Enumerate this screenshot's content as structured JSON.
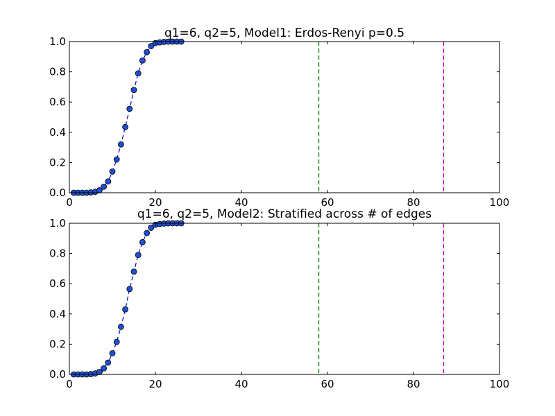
{
  "chart_data": [
    {
      "type": "line",
      "title": "q1=6, q2=5, Model1: Erdos-Renyi p=0.5",
      "xlabel": "",
      "ylabel": "",
      "xlim": [
        0,
        100
      ],
      "ylim": [
        0,
        1
      ],
      "xticks": [
        "0",
        "20",
        "40",
        "60",
        "80",
        "100"
      ],
      "yticks": [
        "0.0",
        "0.2",
        "0.4",
        "0.6",
        "0.8",
        "1.0"
      ],
      "grid": false,
      "series": [
        {
          "color": "#0000cc",
          "marker_fill": "#1f4fcf",
          "line_style": "dashed",
          "x": [
            1,
            2,
            3,
            4,
            5,
            6,
            7,
            8,
            9,
            10,
            11,
            12,
            13,
            14,
            15,
            16,
            17,
            18,
            19,
            20,
            21,
            22,
            23,
            24,
            25,
            26
          ],
          "y": [
            0.0,
            0.0,
            0.0,
            0.0,
            0.002,
            0.006,
            0.016,
            0.04,
            0.075,
            0.14,
            0.22,
            0.32,
            0.435,
            0.555,
            0.68,
            0.79,
            0.875,
            0.93,
            0.97,
            0.99,
            0.995,
            0.998,
            1.0,
            1.0,
            1.0,
            1.0
          ]
        }
      ],
      "vlines": [
        {
          "x": 58,
          "color": "#007f00",
          "style": "dashed"
        },
        {
          "x": 87,
          "color": "#bf00bf",
          "style": "dashed"
        }
      ]
    },
    {
      "type": "line",
      "title": "q1=6, q2=5, Model2: Stratified across # of edges",
      "xlabel": "",
      "ylabel": "",
      "xlim": [
        0,
        100
      ],
      "ylim": [
        0,
        1
      ],
      "xticks": [
        "0",
        "20",
        "40",
        "60",
        "80",
        "100"
      ],
      "yticks": [
        "0.0",
        "0.2",
        "0.4",
        "0.6",
        "0.8",
        "1.0"
      ],
      "grid": false,
      "series": [
        {
          "color": "#0000cc",
          "marker_fill": "#1f4fcf",
          "line_style": "dashed",
          "x": [
            1,
            2,
            3,
            4,
            5,
            6,
            7,
            8,
            9,
            10,
            11,
            12,
            13,
            14,
            15,
            16,
            17,
            18,
            19,
            20,
            21,
            22,
            23,
            24,
            25,
            26
          ],
          "y": [
            0.0,
            0.0,
            0.0,
            0.0,
            0.002,
            0.006,
            0.016,
            0.04,
            0.078,
            0.14,
            0.215,
            0.315,
            0.43,
            0.565,
            0.68,
            0.79,
            0.875,
            0.935,
            0.97,
            0.99,
            0.995,
            0.998,
            1.0,
            1.0,
            1.0,
            1.0
          ]
        }
      ],
      "vlines": [
        {
          "x": 58,
          "color": "#007f00",
          "style": "dashed"
        },
        {
          "x": 87,
          "color": "#bf00bf",
          "style": "dashed"
        }
      ]
    }
  ]
}
